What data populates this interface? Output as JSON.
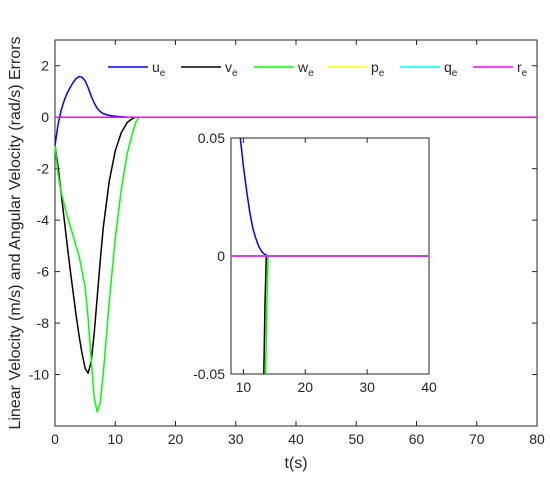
{
  "chart_data": {
    "type": "line",
    "xlabel": "t(s)",
    "ylabel": "Linear Velocity (m/s) and Angular Velocity (rad/s) Errors",
    "xlim": [
      0,
      80
    ],
    "ylim": [
      -12,
      3
    ],
    "xticks": [
      "0",
      "10",
      "20",
      "30",
      "40",
      "50",
      "60",
      "70",
      "80"
    ],
    "yticks": [
      "2",
      "0",
      "-2",
      "-4",
      "-6",
      "-8",
      "-10"
    ],
    "grid": false,
    "legend": {
      "placement": "top",
      "orientation": "horizontal"
    },
    "series": [
      {
        "name": "u",
        "sub": "e",
        "color": "#0000ff",
        "x": [
          0,
          0.5,
          1,
          1.5,
          2,
          2.5,
          3,
          3.5,
          4,
          4.5,
          5,
          5.5,
          6,
          6.5,
          7,
          7.5,
          8,
          9,
          10,
          11,
          12,
          13,
          14,
          80
        ],
        "y": [
          -1.1,
          -0.3,
          0.25,
          0.62,
          0.92,
          1.15,
          1.35,
          1.5,
          1.58,
          1.55,
          1.42,
          1.15,
          0.82,
          0.55,
          0.35,
          0.22,
          0.14,
          0.07,
          0.035,
          0.015,
          0.005,
          0.001,
          0,
          0
        ]
      },
      {
        "name": "v",
        "sub": "e",
        "color": "#000000",
        "x": [
          0,
          0.5,
          1,
          1.5,
          2,
          2.5,
          3,
          3.5,
          4,
          4.5,
          5,
          5.5,
          6,
          6.5,
          7,
          7.5,
          8,
          9,
          10,
          11,
          12,
          13,
          13.5,
          80
        ],
        "y": [
          -1.1,
          -1.9,
          -2.9,
          -3.9,
          -4.9,
          -5.9,
          -6.8,
          -7.7,
          -8.5,
          -9.2,
          -9.75,
          -9.95,
          -9.5,
          -8.4,
          -7.0,
          -5.6,
          -4.3,
          -2.5,
          -1.3,
          -0.6,
          -0.2,
          -0.03,
          0,
          0
        ]
      },
      {
        "name": "w",
        "sub": "e",
        "color": "#00ff00",
        "x": [
          0,
          0.5,
          1,
          2,
          3,
          4,
          5,
          5.5,
          6,
          6.5,
          7,
          7.5,
          8,
          8.5,
          9,
          10,
          11,
          12,
          13,
          13.5,
          14,
          80
        ],
        "y": [
          -1.1,
          -2.2,
          -2.9,
          -3.8,
          -4.6,
          -5.4,
          -6.6,
          -7.8,
          -9.4,
          -10.9,
          -11.45,
          -11.1,
          -10.0,
          -8.6,
          -7.2,
          -4.7,
          -2.8,
          -1.4,
          -0.5,
          -0.15,
          0,
          0
        ]
      },
      {
        "name": "p",
        "sub": "e",
        "color": "#ffff00",
        "x": [
          0,
          80
        ],
        "y": [
          0,
          0
        ]
      },
      {
        "name": "q",
        "sub": "e",
        "color": "#00ffff",
        "x": [
          0,
          80
        ],
        "y": [
          0,
          0
        ]
      },
      {
        "name": "r",
        "sub": "e",
        "color": "#ff00ff",
        "x": [
          0,
          80
        ],
        "y": [
          0,
          0
        ]
      }
    ],
    "inset": {
      "xlim": [
        8,
        40
      ],
      "ylim": [
        -0.05,
        0.05
      ],
      "xticks": [
        "10",
        "20",
        "30",
        "40"
      ],
      "yticks": [
        "0.05",
        "0",
        "-0.05"
      ],
      "series": [
        {
          "name": "u",
          "color": "#0000ff",
          "x": [
            9.5,
            10,
            10.5,
            11,
            11.5,
            12,
            12.5,
            13,
            13.5,
            14,
            40
          ],
          "y": [
            0.05,
            0.038,
            0.028,
            0.019,
            0.012,
            0.0075,
            0.004,
            0.0018,
            0.0006,
            0,
            0
          ]
        },
        {
          "name": "v",
          "color": "#000000",
          "x": [
            13.3,
            13.5,
            13.7,
            40
          ],
          "y": [
            -0.05,
            -0.02,
            0,
            0
          ]
        },
        {
          "name": "w",
          "color": "#00ff00",
          "x": [
            13.6,
            13.8,
            14,
            40
          ],
          "y": [
            -0.05,
            -0.02,
            0,
            0
          ]
        },
        {
          "name": "p",
          "color": "#ffff00",
          "x": [
            8,
            40
          ],
          "y": [
            0,
            0
          ]
        },
        {
          "name": "q",
          "color": "#00ffff",
          "x": [
            8,
            40
          ],
          "y": [
            0,
            0
          ]
        },
        {
          "name": "r",
          "color": "#ff00ff",
          "x": [
            8,
            40
          ],
          "y": [
            0,
            0
          ]
        }
      ]
    }
  }
}
